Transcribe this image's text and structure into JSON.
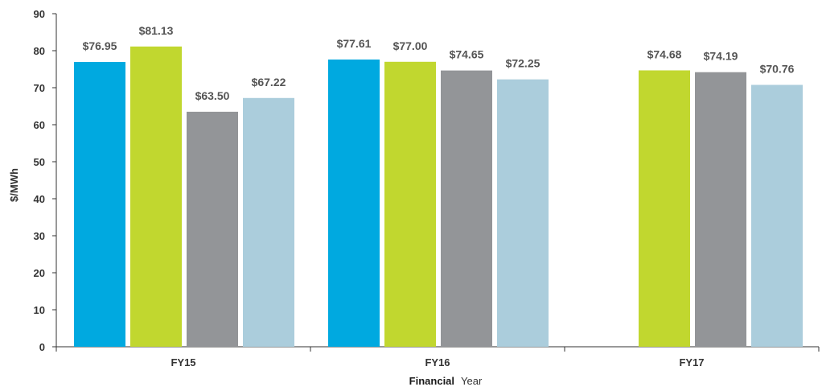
{
  "chart_data": {
    "type": "bar",
    "categories": [
      "FY15",
      "FY16",
      "FY17"
    ],
    "series": [
      {
        "values": [
          76.95,
          77.61,
          null
        ],
        "labels": [
          "$76.95",
          "$77.61",
          ""
        ],
        "color": "#00a9e0"
      },
      {
        "values": [
          81.13,
          77.0,
          74.68
        ],
        "labels": [
          "$81.13",
          "$77.00",
          "$74.68"
        ],
        "color": "#c1d72f"
      },
      {
        "values": [
          63.5,
          74.65,
          74.19
        ],
        "labels": [
          "$63.50",
          "$74.65",
          "$74.19"
        ],
        "color": "#939598"
      },
      {
        "values": [
          67.22,
          72.25,
          70.76
        ],
        "labels": [
          "$67.22",
          "$72.25",
          "$70.76"
        ],
        "color": "#abcddc"
      }
    ],
    "ylabel": "$/MWh",
    "xlabel_bold": "Financial",
    "xlabel_regular": "Year",
    "ylim": [
      0,
      90
    ],
    "yticks": [
      0,
      10,
      20,
      30,
      40,
      50,
      60,
      70,
      80,
      90
    ],
    "grid": false,
    "legend": "none"
  }
}
